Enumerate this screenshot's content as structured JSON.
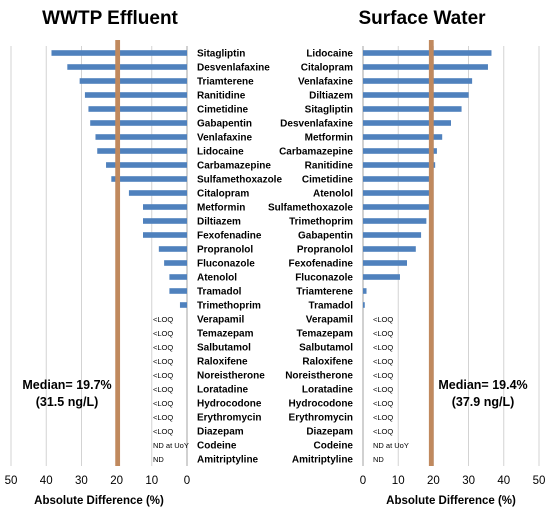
{
  "chart_data": [
    {
      "type": "bar",
      "title": "WWTP Effluent",
      "xlabel": "Absolute Difference (%)",
      "xlim": [
        0,
        50
      ],
      "x_axis_reversed": true,
      "xticks": [
        "50",
        "40",
        "30",
        "20",
        "10",
        "0"
      ],
      "grid": "vertical",
      "median_value": 19.7,
      "median_label": "Median= 19.7%",
      "median_sub": "(31.5 ng/L)",
      "categories": [
        "Sitagliptin",
        "Desvenlafaxine",
        "Triamterene",
        "Ranitidine",
        "Cimetidine",
        "Gabapentin",
        "Venlafaxine",
        "Lidocaine",
        "Carbamazepine",
        "Sulfamethoxazole",
        "Citalopram",
        "Metformin",
        "Diltiazem",
        "Fexofenadine",
        "Propranolol",
        "Fluconazole",
        "Atenolol",
        "Tramadol",
        "Trimethoprim",
        "Verapamil",
        "Temazepam",
        "Salbutamol",
        "Raloxifene",
        "Noreistherone",
        "Loratadine",
        "Hydrocodone",
        "Erythromycin",
        "Diazepam",
        "Codeine",
        "Amitriptyline"
      ],
      "values": [
        38.5,
        34,
        30.5,
        29,
        28,
        27.5,
        26,
        25.5,
        23,
        21.5,
        16.5,
        12.5,
        12.5,
        12.5,
        8,
        6.5,
        5,
        5,
        2,
        null,
        null,
        null,
        null,
        null,
        null,
        null,
        null,
        null,
        null,
        null
      ],
      "notes": [
        "",
        "",
        "",
        "",
        "",
        "",
        "",
        "",
        "",
        "",
        "",
        "",
        "",
        "",
        "",
        "",
        "",
        "",
        "",
        "<LOQ",
        "<LOQ",
        "<LOQ",
        "<LOQ",
        "<LOQ",
        "<LOQ",
        "<LOQ",
        "<LOQ",
        "<LOQ",
        "ND at UoY",
        "ND"
      ]
    },
    {
      "type": "bar",
      "title": "Surface Water",
      "xlabel": "Absolute Difference (%)",
      "xlim": [
        0,
        50
      ],
      "xticks": [
        "0",
        "10",
        "20",
        "30",
        "40",
        "50"
      ],
      "grid": "vertical",
      "median_value": 19.4,
      "median_label": "Median= 19.4%",
      "median_sub": "(37.9 ng/L)",
      "categories": [
        "Lidocaine",
        "Citalopram",
        "Venlafaxine",
        "Diltiazem",
        "Sitagliptin",
        "Desvenlafaxine",
        "Metformin",
        "Carbamazepine",
        "Ranitidine",
        "Cimetidine",
        "Atenolol",
        "Sulfamethoxazole",
        "Trimethoprim",
        "Gabapentin",
        "Propranolol",
        "Fexofenadine",
        "Fluconazole",
        "Triamterene",
        "Tramadol",
        "Verapamil",
        "Temazepam",
        "Salbutamol",
        "Raloxifene",
        "Noreistherone",
        "Loratadine",
        "Hydrocodone",
        "Erythromycin",
        "Diazepam",
        "Codeine",
        "Amitriptyline"
      ],
      "values": [
        36.5,
        35.5,
        31,
        30,
        28,
        25,
        22.5,
        21,
        20.5,
        20,
        19.5,
        19.5,
        18,
        16.5,
        15,
        12.5,
        10.5,
        1,
        0.5,
        null,
        null,
        null,
        null,
        null,
        null,
        null,
        null,
        null,
        null,
        null
      ],
      "notes": [
        "",
        "",
        "",
        "",
        "",
        "",
        "",
        "",
        "",
        "",
        "",
        "",
        "",
        "",
        "",
        "",
        "",
        "",
        "",
        "<LOQ",
        "<LOQ",
        "<LOQ",
        "<LOQ",
        "<LOQ",
        "<LOQ",
        "<LOQ",
        "<LOQ",
        "<LOQ",
        "ND at UoY",
        "ND"
      ]
    }
  ]
}
